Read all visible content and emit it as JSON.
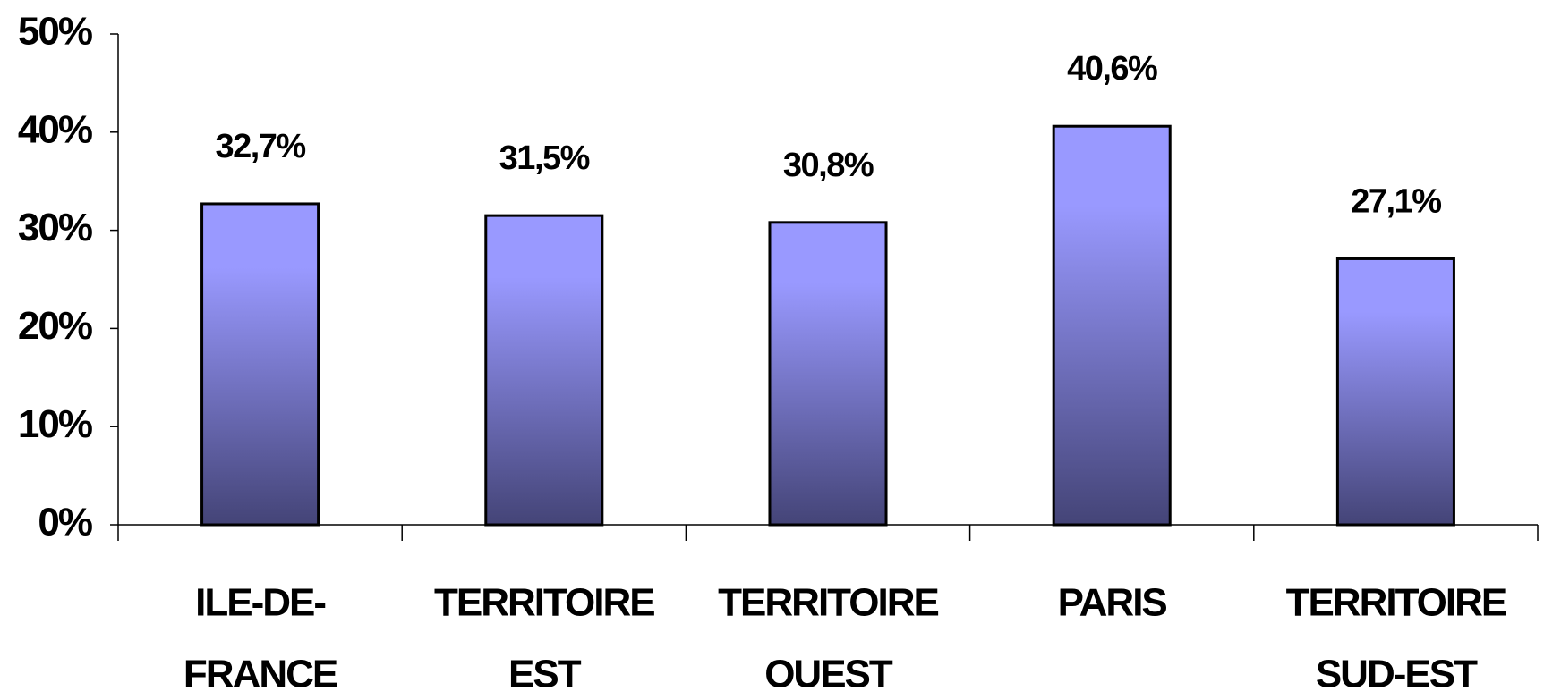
{
  "chart_data": {
    "type": "bar",
    "categories": [
      [
        "ILE-DE-",
        "FRANCE"
      ],
      [
        "TERRITOIRE",
        "EST"
      ],
      [
        "TERRITOIRE",
        "OUEST"
      ],
      [
        "PARIS"
      ],
      [
        "TERRITOIRE",
        "SUD-EST"
      ]
    ],
    "values": [
      32.7,
      31.5,
      30.8,
      40.6,
      27.1
    ],
    "value_labels": [
      "32,7%",
      "31,5%",
      "30,8%",
      "40,6%",
      "27,1%"
    ],
    "ylim": [
      0,
      50
    ],
    "yticks": [
      {
        "value": 0,
        "label": "0%"
      },
      {
        "value": 10,
        "label": "10%"
      },
      {
        "value": 20,
        "label": "20%"
      },
      {
        "value": 30,
        "label": "30%"
      },
      {
        "value": 40,
        "label": "40%"
      },
      {
        "value": 50,
        "label": "50%"
      }
    ],
    "color": "#9999ff"
  }
}
